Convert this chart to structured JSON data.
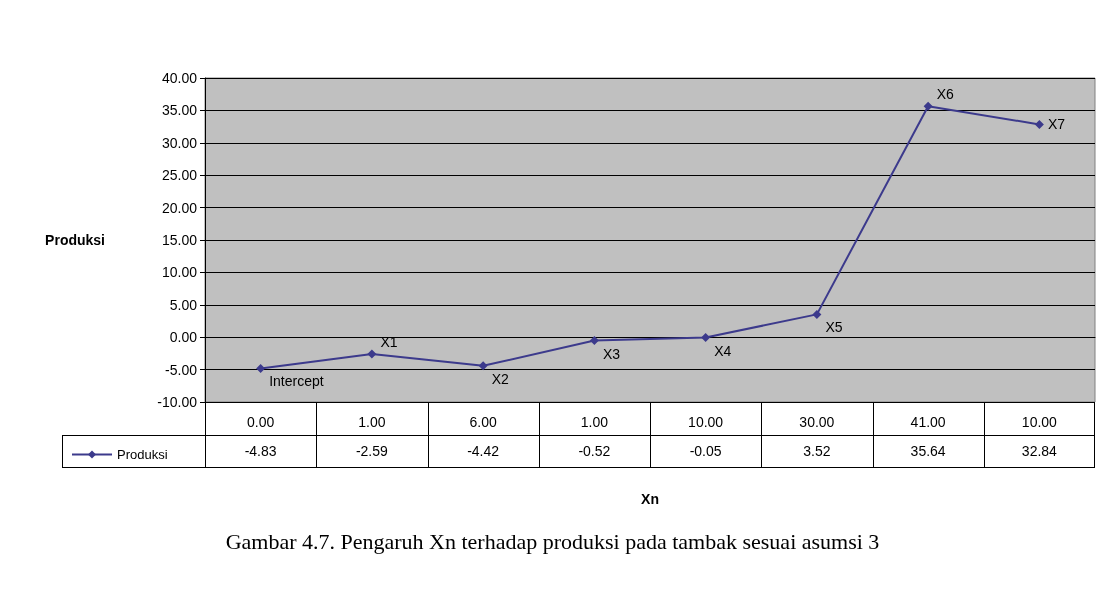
{
  "chart_data": {
    "type": "line",
    "ylabel": "Produksi",
    "xlabel": "Xn",
    "categories": [
      "0.00",
      "1.00",
      "6.00",
      "1.00",
      "10.00",
      "30.00",
      "41.00",
      "10.00"
    ],
    "series": [
      {
        "name": "Produksi",
        "color": "#3c3a8c",
        "values": [
          -4.83,
          -2.59,
          -4.42,
          -0.52,
          -0.05,
          3.52,
          35.64,
          32.84
        ]
      }
    ],
    "ylim": [
      -10,
      40
    ],
    "yticks": [
      {
        "value": -10,
        "label": "-10.00"
      },
      {
        "value": -5,
        "label": "-5.00"
      },
      {
        "value": 0,
        "label": "0.00"
      },
      {
        "value": 5,
        "label": "5.00"
      },
      {
        "value": 10,
        "label": "10.00"
      },
      {
        "value": 15,
        "label": "15.00"
      },
      {
        "value": 20,
        "label": "20.00"
      },
      {
        "value": 25,
        "label": "25.00"
      },
      {
        "value": 30,
        "label": "30.00"
      },
      {
        "value": 35,
        "label": "35.00"
      },
      {
        "value": 40,
        "label": "40.00"
      }
    ],
    "grid": "y",
    "marker": "diamond",
    "line_style": "solid",
    "legend": "bottom left",
    "data_labels": true,
    "annotations": [
      "Intercept",
      "X1",
      "X2",
      "X3",
      "X4",
      "X5",
      "X6",
      "X7",
      "Gambar 4.7. Pengaruh Xn terhadap produksi pada tambak sesuai asumsi 3"
    ]
  }
}
